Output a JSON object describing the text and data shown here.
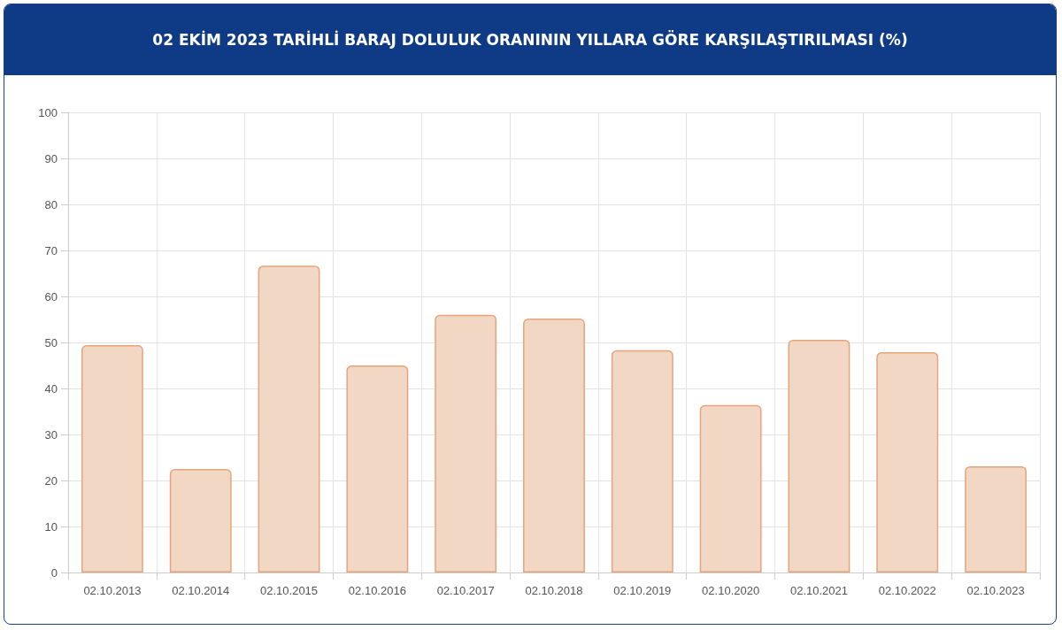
{
  "chart_data": {
    "type": "bar",
    "title": "02 EKİM 2023 TARİHLİ BARAJ DOLULUK ORANININ YILLARA GÖRE KARŞILAŞTIRILMASI (%)",
    "categories": [
      "02.10.2013",
      "02.10.2014",
      "02.10.2015",
      "02.10.2016",
      "02.10.2017",
      "02.10.2018",
      "02.10.2019",
      "02.10.2020",
      "02.10.2021",
      "02.10.2022",
      "02.10.2023"
    ],
    "values": [
      49.4,
      22.5,
      66.7,
      45.0,
      56.0,
      55.2,
      48.3,
      36.4,
      50.6,
      47.9,
      23.1
    ],
    "color": "#f2d7c5",
    "ylim": [
      0,
      100
    ],
    "yticks": [
      0,
      10,
      20,
      30,
      40,
      50,
      60,
      70,
      80,
      90,
      100
    ],
    "grid": true
  }
}
